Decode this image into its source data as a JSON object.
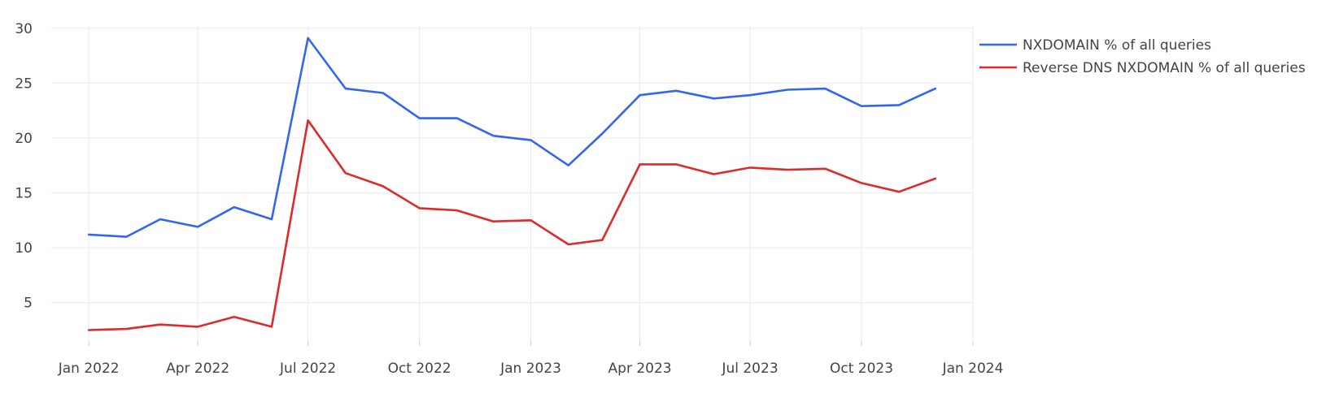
{
  "chart_data": {
    "type": "line",
    "title": "",
    "xlabel": "",
    "ylabel": "",
    "x": [
      "2022-01-01",
      "2022-02-01",
      "2022-03-01",
      "2022-04-01",
      "2022-05-01",
      "2022-06-01",
      "2022-07-01",
      "2022-08-01",
      "2022-09-01",
      "2022-10-01",
      "2022-11-01",
      "2022-12-01",
      "2023-01-01",
      "2023-02-01",
      "2023-03-01",
      "2023-04-01",
      "2023-05-01",
      "2023-06-01",
      "2023-07-01",
      "2023-08-01",
      "2023-09-01",
      "2023-10-01",
      "2023-11-01",
      "2023-12-01"
    ],
    "series": [
      {
        "name": "NXDOMAIN % of all queries",
        "color": "#3366ee",
        "values": [
          11.2,
          11.0,
          12.6,
          11.9,
          13.7,
          12.6,
          29.1,
          24.5,
          24.1,
          21.8,
          21.8,
          20.2,
          19.8,
          17.5,
          20.4,
          23.9,
          24.3,
          23.6,
          23.9,
          24.4,
          24.5,
          22.9,
          23.0,
          24.5
        ]
      },
      {
        "name": "Reverse DNS NXDOMAIN % of all queries",
        "color": "#dd2a2a",
        "values": [
          2.5,
          2.6,
          3.0,
          2.8,
          3.7,
          2.8,
          21.6,
          16.8,
          15.6,
          13.6,
          13.4,
          12.4,
          12.5,
          10.3,
          10.7,
          17.6,
          17.6,
          16.7,
          17.3,
          17.1,
          17.2,
          15.9,
          15.1,
          16.3
        ]
      }
    ],
    "xlim": [
      "2021-12-01",
      "2024-01-01"
    ],
    "ylim": [
      1.5,
      30.5
    ],
    "y_ticks": [
      5,
      10,
      15,
      20,
      25,
      30
    ],
    "y_tick_labels": [
      "5",
      "10",
      "15",
      "20",
      "25",
      "30"
    ],
    "x_ticks": [
      "2022-01-01",
      "2022-04-01",
      "2022-07-01",
      "2022-10-01",
      "2023-01-01",
      "2023-04-01",
      "2023-07-01",
      "2023-10-01",
      "2024-01-01"
    ],
    "x_tick_labels": [
      "Jan 2022",
      "Apr 2022",
      "Jul 2022",
      "Oct 2022",
      "Jan 2023",
      "Apr 2023",
      "Jul 2023",
      "Oct 2023",
      "Jan 2024"
    ],
    "grid": true,
    "legend_position": "top-right"
  }
}
